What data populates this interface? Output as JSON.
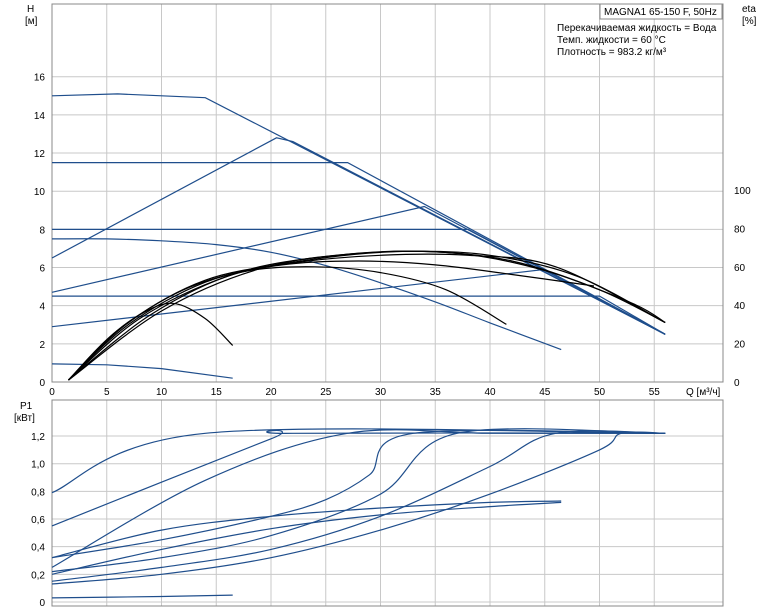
{
  "chart_data": [
    {
      "type": "line",
      "name": "pump-curve-chart",
      "title": "MAGNA1 65-150 F, 50Hz",
      "info": [
        "Перекачиваемая жидкость = Вода",
        "Темп. жидкости = 60 °C",
        "Плотность = 983.2 кг/м³"
      ],
      "ylabel": "H",
      "yunit": "[м]",
      "y2label": "eta",
      "y2unit": "[%]",
      "xlabel": "Q [м³/ч]",
      "xlim": [
        0,
        60
      ],
      "ylim": [
        0,
        16
      ],
      "y2lim": [
        0,
        100
      ],
      "xticks": [
        0,
        5,
        10,
        15,
        20,
        25,
        30,
        35,
        40,
        45,
        50,
        55
      ],
      "yticks": [
        0,
        2,
        4,
        6,
        8,
        10,
        12,
        14,
        16
      ],
      "y2ticks": [
        0,
        20,
        40,
        60,
        80,
        100
      ],
      "grid": true,
      "colors": {
        "curve": "#1f4e8c",
        "efficiency": "#000000"
      },
      "series": [
        {
          "kind": "head",
          "x": [
            0,
            6,
            14,
            56
          ],
          "y": [
            15.0,
            15.1,
            14.9,
            2.5
          ]
        },
        {
          "kind": "head",
          "x": [
            0,
            20.5,
            22,
            56
          ],
          "y": [
            6.5,
            12.8,
            12.6,
            2.5
          ]
        },
        {
          "kind": "head",
          "x": [
            0,
            34,
            56
          ],
          "y": [
            4.7,
            9.2,
            2.5
          ]
        },
        {
          "kind": "head",
          "x": [
            0,
            45,
            56
          ],
          "y": [
            2.9,
            5.9,
            2.5
          ]
        },
        {
          "kind": "head",
          "x": [
            0,
            27,
            56
          ],
          "y": [
            11.5,
            11.5,
            2.5
          ]
        },
        {
          "kind": "head",
          "x": [
            0,
            38,
            56
          ],
          "y": [
            8.0,
            8.0,
            2.5
          ]
        },
        {
          "kind": "head",
          "x": [
            0,
            50,
            56
          ],
          "y": [
            4.5,
            4.5,
            2.5
          ]
        },
        {
          "kind": "head",
          "x": [
            0,
            5,
            10,
            15,
            20,
            25,
            30,
            35,
            40,
            46.5
          ],
          "y": [
            7.5,
            7.5,
            7.4,
            7.2,
            6.8,
            6.1,
            5.2,
            4.2,
            3.1,
            1.7
          ]
        },
        {
          "kind": "head",
          "x": [
            0,
            5,
            10,
            16.5
          ],
          "y": [
            0.95,
            0.9,
            0.7,
            0.2
          ]
        },
        {
          "kind": "eta",
          "x": [
            1.5,
            5,
            8,
            11,
            14,
            16.5
          ],
          "y": [
            1,
            22,
            35,
            41,
            33,
            19
          ]
        },
        {
          "kind": "eta",
          "x": [
            1.5,
            6,
            12,
            18,
            24,
            30,
            36,
            41.5
          ],
          "y": [
            1,
            27,
            48,
            58,
            60,
            57,
            48,
            30
          ]
        },
        {
          "kind": "eta",
          "x": [
            1.5,
            7,
            14,
            21,
            28,
            35,
            42,
            49.5
          ],
          "y": [
            1,
            30,
            52,
            61,
            63,
            61,
            56,
            50
          ]
        },
        {
          "kind": "eta",
          "x": [
            1.5,
            7,
            14,
            22,
            30,
            38,
            46,
            56
          ],
          "y": [
            1,
            31,
            53,
            62,
            66,
            66,
            60,
            31
          ]
        },
        {
          "kind": "eta",
          "x": [
            1.5,
            8,
            16,
            24,
            32,
            40,
            48,
            56
          ],
          "y": [
            1,
            33,
            55,
            64,
            68,
            66,
            55,
            31
          ]
        },
        {
          "kind": "eta",
          "x": [
            1.5,
            9,
            17,
            26,
            34,
            42,
            50,
            56
          ],
          "y": [
            1,
            35,
            57,
            66,
            68,
            63,
            48,
            31
          ]
        },
        {
          "kind": "eta",
          "x": [
            1.5,
            10,
            19,
            28,
            37,
            45,
            53,
            56
          ],
          "y": [
            1,
            37,
            59,
            67,
            67,
            58,
            41,
            31
          ]
        }
      ]
    },
    {
      "type": "line",
      "name": "power-chart",
      "ylabel": "P1",
      "yunit": "[кВт]",
      "xlim": [
        0,
        60
      ],
      "ylim": [
        0,
        1.2
      ],
      "yticks": [
        "0",
        "0,2",
        "0,4",
        "0,6",
        "0,8",
        "1,0",
        "1,2"
      ],
      "ytick_values": [
        0,
        0.2,
        0.4,
        0.6,
        0.8,
        1.0,
        1.2
      ],
      "grid": true,
      "series": [
        {
          "x": [
            0,
            14,
            56
          ],
          "y": [
            0.79,
            1.22,
            1.22
          ]
        },
        {
          "x": [
            0,
            20,
            22,
            56
          ],
          "y": [
            0.55,
            1.18,
            1.22,
            1.22
          ]
        },
        {
          "x": [
            0,
            10,
            20,
            25,
            29,
            33,
            56
          ],
          "y": [
            0.32,
            0.45,
            0.62,
            0.74,
            0.92,
            1.22,
            1.22
          ]
        },
        {
          "x": [
            0,
            10,
            20,
            30,
            37,
            56
          ],
          "y": [
            0.22,
            0.32,
            0.48,
            0.78,
            1.22,
            1.22
          ]
        },
        {
          "x": [
            0,
            10,
            20,
            30,
            40,
            46,
            56
          ],
          "y": [
            0.15,
            0.25,
            0.38,
            0.62,
            0.98,
            1.22,
            1.22
          ]
        },
        {
          "x": [
            0,
            10,
            20,
            30,
            40,
            50,
            52,
            56
          ],
          "y": [
            0.13,
            0.2,
            0.32,
            0.52,
            0.78,
            1.1,
            1.22,
            1.22
          ]
        },
        {
          "x": [
            0,
            10,
            20,
            30,
            40,
            46.5
          ],
          "y": [
            0.32,
            0.52,
            0.62,
            0.68,
            0.72,
            0.73
          ]
        },
        {
          "x": [
            0,
            10,
            20,
            30,
            40,
            46.5
          ],
          "y": [
            0.2,
            0.38,
            0.53,
            0.63,
            0.69,
            0.72
          ]
        },
        {
          "x": [
            0,
            14,
            27,
            40,
            51,
            56
          ],
          "y": [
            0.25,
            0.88,
            1.22,
            1.22,
            1.22,
            1.22
          ]
        },
        {
          "x": [
            0,
            10,
            16.5
          ],
          "y": [
            0.03,
            0.04,
            0.05
          ]
        }
      ]
    }
  ]
}
